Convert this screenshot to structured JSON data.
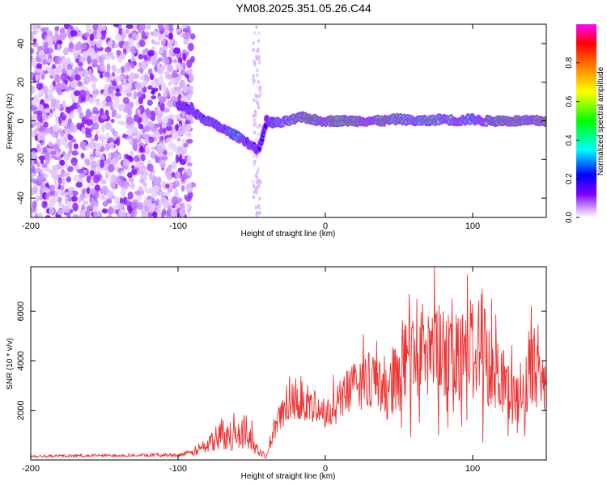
{
  "title": "YM08.2025.351.05.26.C44",
  "chart_data": [
    {
      "type": "heatmap",
      "name": "spectrogram",
      "xlabel": "Height of straight line (km)",
      "ylabel": "Frequency (Hz)",
      "xlim": [
        -200,
        150
      ],
      "ylim": [
        -50,
        50
      ],
      "xticks": [
        -200,
        -100,
        0,
        100
      ],
      "yticks": [
        -40,
        -20,
        0,
        20,
        40
      ],
      "colorbar": {
        "label": "Normalized spectral amplitude",
        "range": [
          0.0,
          1.0
        ],
        "ticks": [
          "0.0",
          "0.2",
          "0.4",
          "0.6",
          "0.8"
        ],
        "colormap": [
          "#ffffff",
          "#cc99ff",
          "#7f00ff",
          "#0000ff",
          "#00ffff",
          "#00ff00",
          "#ffff00",
          "#ff8000",
          "#ff0000",
          "#ff00ff"
        ]
      },
      "noise_region": {
        "x_from": -200,
        "x_to": -90,
        "mean_amplitude": 0.15
      },
      "signal_track": {
        "x": [
          -100,
          -95,
          -90,
          -85,
          -80,
          -75,
          -70,
          -65,
          -60,
          -55,
          -50,
          -45,
          -40,
          -35,
          -30,
          -25,
          -20,
          -15,
          -10,
          -5,
          0,
          10,
          20,
          30,
          40,
          50,
          60,
          70,
          80,
          90,
          100,
          105,
          110,
          120,
          130,
          140,
          150
        ],
        "y": [
          8,
          7,
          5,
          2,
          0,
          -2,
          -4,
          -6,
          -8,
          -10,
          -13,
          -15,
          0,
          -1,
          -1,
          0,
          1,
          2,
          1,
          0,
          0,
          0,
          0,
          0,
          0,
          1,
          0,
          0,
          1,
          0,
          1,
          0,
          0,
          0,
          0,
          0,
          0
        ],
        "amplitude": [
          0.35,
          0.4,
          0.45,
          0.45,
          0.5,
          0.5,
          0.5,
          0.5,
          0.55,
          0.5,
          0.45,
          0.3,
          0.35,
          0.5,
          0.6,
          0.7,
          0.8,
          0.85,
          0.85,
          0.8,
          0.85,
          0.8,
          0.85,
          0.85,
          0.8,
          0.75,
          0.7,
          0.75,
          0.7,
          0.65,
          0.6,
          0.55,
          0.8,
          0.85,
          0.85,
          0.85,
          0.85
        ]
      }
    },
    {
      "type": "line",
      "name": "snr",
      "xlabel": "Height of straight line (km)",
      "ylabel": "SNR (10 * v/v)",
      "xlim": [
        -200,
        150
      ],
      "ylim": [
        0,
        7800
      ],
      "xticks": [
        -200,
        -100,
        0,
        100
      ],
      "yticks": [
        2000,
        4000,
        6000
      ],
      "color": "#ee3333",
      "envelope": {
        "x": [
          -200,
          -150,
          -100,
          -90,
          -80,
          -70,
          -60,
          -55,
          -50,
          -45,
          -40,
          -35,
          -30,
          -25,
          -20,
          -15,
          -10,
          -5,
          0,
          10,
          20,
          30,
          40,
          50,
          60,
          70,
          80,
          90,
          100,
          110,
          120,
          130,
          140,
          145,
          150
        ],
        "y": [
          150,
          180,
          200,
          300,
          600,
          1000,
          900,
          1100,
          800,
          300,
          150,
          1200,
          1800,
          2300,
          2500,
          2400,
          2000,
          2200,
          1800,
          2400,
          3000,
          3200,
          2800,
          3500,
          4200,
          4600,
          4000,
          4300,
          4200,
          3900,
          3500,
          2300,
          3500,
          4000,
          2600
        ]
      },
      "spikes": [
        {
          "x": -62,
          "y": 1900
        },
        {
          "x": -55,
          "y": 1800
        },
        {
          "x": -50,
          "y": 1600
        },
        {
          "x": -30,
          "y": 2300
        },
        {
          "x": -20,
          "y": 3300
        },
        {
          "x": -12,
          "y": 3000
        },
        {
          "x": 10,
          "y": 3200
        },
        {
          "x": 25,
          "y": 3900
        },
        {
          "x": 40,
          "y": 4200
        },
        {
          "x": 52,
          "y": 4800
        },
        {
          "x": 57,
          "y": 6700
        },
        {
          "x": 62,
          "y": 6500
        },
        {
          "x": 66,
          "y": 6300
        },
        {
          "x": 70,
          "y": 5800
        },
        {
          "x": 74,
          "y": 7800
        },
        {
          "x": 80,
          "y": 6000
        },
        {
          "x": 86,
          "y": 6500
        },
        {
          "x": 92,
          "y": 5700
        },
        {
          "x": 100,
          "y": 6300
        },
        {
          "x": 106,
          "y": 6700
        },
        {
          "x": 108,
          "y": 6100
        },
        {
          "x": 138,
          "y": 5200
        }
      ],
      "dips": [
        {
          "x": 58,
          "y": 900
        },
        {
          "x": 64,
          "y": 1500
        },
        {
          "x": 77,
          "y": 1000
        },
        {
          "x": 83,
          "y": 1300
        },
        {
          "x": 96,
          "y": 1600
        },
        {
          "x": 107,
          "y": 700
        }
      ]
    }
  ]
}
